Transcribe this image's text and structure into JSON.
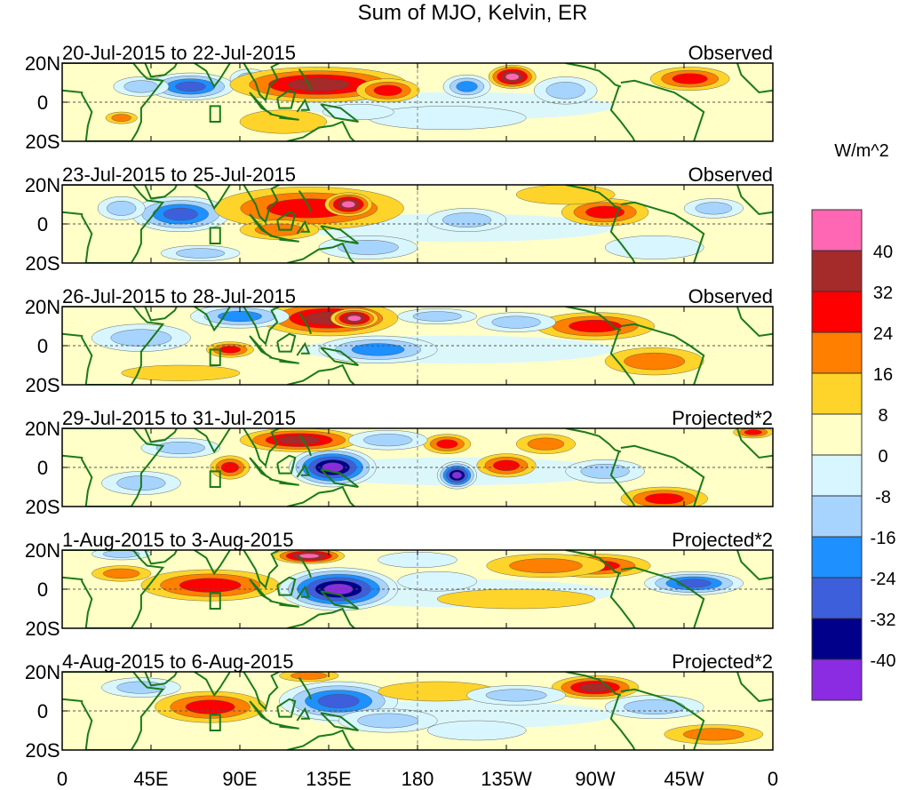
{
  "chart_data": {
    "type": "heatmap",
    "title": "Sum of MJO, Kelvin, ER",
    "x_tick_labels": [
      "0",
      "45E",
      "90E",
      "135E",
      "180",
      "135W",
      "90W",
      "45W",
      "0"
    ],
    "x_tick_lon": [
      0,
      45,
      90,
      135,
      180,
      225,
      270,
      315,
      360
    ],
    "y_tick_labels": [
      "20N",
      "0",
      "20S"
    ],
    "y_tick_lat": [
      20,
      0,
      -20
    ],
    "lat_range": [
      -20,
      20
    ],
    "lon_range": [
      0,
      360
    ],
    "colorbar": {
      "units": "W/m^2",
      "levels": [
        "40",
        "32",
        "24",
        "16",
        "8",
        "0",
        "-8",
        "-16",
        "-24",
        "-32",
        "-40"
      ],
      "colors": [
        "#ff66b3",
        "#a52a2a",
        "#ff0000",
        "#ff7f00",
        "#ffd42a",
        "#ffffc7",
        "#d8f6ff",
        "#a7d4ff",
        "#1e90ff",
        "#3e5fdb",
        "#00008b",
        "#8b2be2"
      ]
    },
    "box_marker": {
      "lon_range": [
        75,
        80
      ],
      "lat_range": [
        -10,
        -2
      ]
    },
    "panels": [
      {
        "date_range": "20-Jul-2015 to 22-Jul-2015",
        "type": "Observed",
        "anomalies": [
          {
            "lon": 65,
            "lat": 8,
            "rx": 22,
            "ry": 7,
            "level": -32
          },
          {
            "lon": 40,
            "lat": 8,
            "rx": 14,
            "ry": 5,
            "level": -16
          },
          {
            "lon": 95,
            "lat": 12,
            "rx": 10,
            "ry": 5,
            "level": -16
          },
          {
            "lon": 130,
            "lat": 9,
            "rx": 45,
            "ry": 9,
            "level": 32
          },
          {
            "lon": 165,
            "lat": 6,
            "rx": 16,
            "ry": 6,
            "level": 24
          },
          {
            "lon": 228,
            "lat": 13,
            "rx": 12,
            "ry": 6,
            "level": 40
          },
          {
            "lon": 205,
            "lat": 8,
            "rx": 12,
            "ry": 6,
            "level": -24
          },
          {
            "lon": 255,
            "lat": 6,
            "rx": 16,
            "ry": 7,
            "level": -16
          },
          {
            "lon": 318,
            "lat": 12,
            "rx": 20,
            "ry": 6,
            "level": 24
          },
          {
            "lon": 195,
            "lat": -8,
            "rx": 40,
            "ry": 6,
            "level": -8
          },
          {
            "lon": 30,
            "lat": -8,
            "rx": 8,
            "ry": 3,
            "level": 16
          },
          {
            "lon": 112,
            "lat": -10,
            "rx": 22,
            "ry": 6,
            "level": 8
          },
          {
            "lon": 150,
            "lat": -5,
            "rx": 18,
            "ry": 4,
            "level": -8
          }
        ]
      },
      {
        "date_range": "23-Jul-2015 to 25-Jul-2015",
        "type": "Observed",
        "anomalies": [
          {
            "lon": 60,
            "lat": 5,
            "rx": 25,
            "ry": 9,
            "level": -32
          },
          {
            "lon": 30,
            "lat": 8,
            "rx": 12,
            "ry": 6,
            "level": -16
          },
          {
            "lon": 125,
            "lat": 8,
            "rx": 48,
            "ry": 11,
            "level": 24
          },
          {
            "lon": 145,
            "lat": 10,
            "rx": 12,
            "ry": 6,
            "level": 40
          },
          {
            "lon": 110,
            "lat": -3,
            "rx": 20,
            "ry": 5,
            "level": 16
          },
          {
            "lon": 155,
            "lat": -12,
            "rx": 25,
            "ry": 6,
            "level": -16
          },
          {
            "lon": 205,
            "lat": 2,
            "rx": 20,
            "ry": 6,
            "level": -16
          },
          {
            "lon": 275,
            "lat": 6,
            "rx": 22,
            "ry": 7,
            "level": 24
          },
          {
            "lon": 255,
            "lat": 15,
            "rx": 25,
            "ry": 5,
            "level": 8
          },
          {
            "lon": 330,
            "lat": 8,
            "rx": 15,
            "ry": 5,
            "level": -16
          },
          {
            "lon": 300,
            "lat": -12,
            "rx": 25,
            "ry": 6,
            "level": -8
          },
          {
            "lon": 70,
            "lat": -15,
            "rx": 20,
            "ry": 4,
            "level": -16
          }
        ]
      },
      {
        "date_range": "26-Jul-2015 to 28-Jul-2015",
        "type": "Observed",
        "anomalies": [
          {
            "lon": 135,
            "lat": 14,
            "rx": 35,
            "ry": 9,
            "level": 32
          },
          {
            "lon": 148,
            "lat": 14,
            "rx": 12,
            "ry": 5,
            "level": 40
          },
          {
            "lon": 90,
            "lat": 15,
            "rx": 25,
            "ry": 6,
            "level": -24
          },
          {
            "lon": 40,
            "lat": 4,
            "rx": 25,
            "ry": 7,
            "level": -16
          },
          {
            "lon": 160,
            "lat": -2,
            "rx": 30,
            "ry": 7,
            "level": -24
          },
          {
            "lon": 270,
            "lat": 10,
            "rx": 30,
            "ry": 7,
            "level": 24
          },
          {
            "lon": 300,
            "lat": -8,
            "rx": 25,
            "ry": 7,
            "level": 16
          },
          {
            "lon": 85,
            "lat": -2,
            "rx": 12,
            "ry": 4,
            "level": 24
          },
          {
            "lon": 190,
            "lat": 15,
            "rx": 20,
            "ry": 4,
            "level": -16
          },
          {
            "lon": 230,
            "lat": 12,
            "rx": 20,
            "ry": 5,
            "level": -16
          },
          {
            "lon": 60,
            "lat": -14,
            "rx": 30,
            "ry": 4,
            "level": 8
          }
        ]
      },
      {
        "date_range": "29-Jul-2015 to 31-Jul-2015",
        "type": "Projected*2",
        "anomalies": [
          {
            "lon": 137,
            "lat": 0,
            "rx": 22,
            "ry": 10,
            "level": -40
          },
          {
            "lon": 200,
            "lat": -4,
            "rx": 10,
            "ry": 7,
            "level": -40
          },
          {
            "lon": 120,
            "lat": 14,
            "rx": 30,
            "ry": 6,
            "level": 32
          },
          {
            "lon": 85,
            "lat": 0,
            "rx": 10,
            "ry": 6,
            "level": 24
          },
          {
            "lon": 225,
            "lat": 1,
            "rx": 15,
            "ry": 6,
            "level": 24
          },
          {
            "lon": 195,
            "lat": 12,
            "rx": 12,
            "ry": 5,
            "level": 24
          },
          {
            "lon": 245,
            "lat": 12,
            "rx": 15,
            "ry": 5,
            "level": 16
          },
          {
            "lon": 275,
            "lat": -2,
            "rx": 20,
            "ry": 6,
            "level": -16
          },
          {
            "lon": 305,
            "lat": -16,
            "rx": 22,
            "ry": 6,
            "level": 24
          },
          {
            "lon": 350,
            "lat": 18,
            "rx": 10,
            "ry": 3,
            "level": 24
          },
          {
            "lon": 60,
            "lat": 10,
            "rx": 20,
            "ry": 5,
            "level": -16
          },
          {
            "lon": 40,
            "lat": -8,
            "rx": 20,
            "ry": 6,
            "level": -16
          },
          {
            "lon": 165,
            "lat": 14,
            "rx": 20,
            "ry": 5,
            "level": -16
          }
        ]
      },
      {
        "date_range": "1-Aug-2015 to 3-Aug-2015",
        "type": "Projected*2",
        "anomalies": [
          {
            "lon": 140,
            "lat": 0,
            "rx": 30,
            "ry": 11,
            "level": -40
          },
          {
            "lon": 75,
            "lat": 2,
            "rx": 35,
            "ry": 8,
            "level": 24
          },
          {
            "lon": 125,
            "lat": 17,
            "rx": 18,
            "ry": 4,
            "level": 40
          },
          {
            "lon": 270,
            "lat": 12,
            "rx": 28,
            "ry": 6,
            "level": 24
          },
          {
            "lon": 245,
            "lat": 12,
            "rx": 30,
            "ry": 6,
            "level": 16
          },
          {
            "lon": 320,
            "lat": 3,
            "rx": 25,
            "ry": 6,
            "level": -32
          },
          {
            "lon": 190,
            "lat": 4,
            "rx": 20,
            "ry": 5,
            "level": -8
          },
          {
            "lon": 230,
            "lat": -5,
            "rx": 40,
            "ry": 5,
            "level": 8
          },
          {
            "lon": 30,
            "lat": 18,
            "rx": 15,
            "ry": 3,
            "level": -16
          },
          {
            "lon": 30,
            "lat": 8,
            "rx": 15,
            "ry": 4,
            "level": 16
          },
          {
            "lon": 180,
            "lat": 15,
            "rx": 20,
            "ry": 4,
            "level": -8
          }
        ]
      },
      {
        "date_range": "4-Aug-2015 to 6-Aug-2015",
        "type": "Projected*2",
        "anomalies": [
          {
            "lon": 140,
            "lat": 5,
            "rx": 30,
            "ry": 10,
            "level": -32
          },
          {
            "lon": 75,
            "lat": 2,
            "rx": 28,
            "ry": 8,
            "level": 24
          },
          {
            "lon": 125,
            "lat": 18,
            "rx": 15,
            "ry": 3,
            "level": 16
          },
          {
            "lon": 270,
            "lat": 12,
            "rx": 22,
            "ry": 6,
            "level": 32
          },
          {
            "lon": 300,
            "lat": 2,
            "rx": 25,
            "ry": 6,
            "level": -16
          },
          {
            "lon": 165,
            "lat": -5,
            "rx": 25,
            "ry": 6,
            "level": -16
          },
          {
            "lon": 190,
            "lat": 10,
            "rx": 30,
            "ry": 5,
            "level": 8
          },
          {
            "lon": 230,
            "lat": 8,
            "rx": 25,
            "ry": 5,
            "level": -16
          },
          {
            "lon": 40,
            "lat": 12,
            "rx": 20,
            "ry": 5,
            "level": -16
          },
          {
            "lon": 330,
            "lat": -12,
            "rx": 25,
            "ry": 5,
            "level": 16
          },
          {
            "lon": 210,
            "lat": -10,
            "rx": 25,
            "ry": 5,
            "level": -8
          }
        ]
      }
    ]
  }
}
